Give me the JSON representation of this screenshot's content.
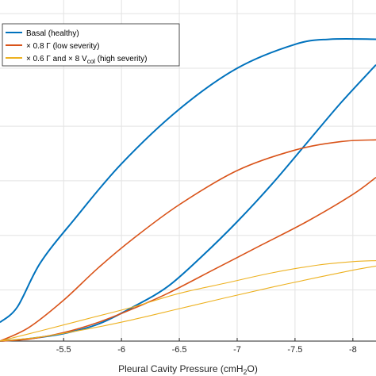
{
  "chart_data": {
    "type": "line",
    "title": "",
    "xlabel": {
      "main": "Pleural Cavity Pressure (cmH",
      "sub": "2",
      "suffix": "O)"
    },
    "ylabel": "",
    "x_axis_reversed": true,
    "xlim": [
      -4.95,
      -8.2
    ],
    "ylim": [
      0,
      1
    ],
    "xticks": [
      -5.5,
      -6,
      -6.5,
      -7,
      -7.5,
      -8
    ],
    "xtick_labels": [
      "-5.5",
      "-6",
      "-6.5",
      "-7",
      "-7.5",
      "-8"
    ],
    "grid": true,
    "legend_position": "top-left",
    "legend": [
      {
        "parts": [
          {
            "t": "Basal (healthy)"
          }
        ],
        "color": "#0072BD"
      },
      {
        "parts": [
          {
            "t": "× 0.8 Γ (low severity)"
          }
        ],
        "color": "#D95319"
      },
      {
        "parts": [
          {
            "t": "× 0.6 Γ and × 8 V"
          },
          {
            "t": "col",
            "sub": true
          },
          {
            "t": " (high severity)"
          }
        ],
        "color": "#EDB120"
      }
    ],
    "series": [
      {
        "color": "#0072BD",
        "upper_x": [
          -4.95,
          -5.1,
          -5.3,
          -5.6,
          -6.0,
          -6.5,
          -7.0,
          -7.5,
          -7.8,
          -8.2
        ],
        "upper_y": [
          0.055,
          0.1,
          0.23,
          0.36,
          0.52,
          0.68,
          0.8,
          0.87,
          0.885,
          0.885
        ],
        "lower_x": [
          -4.95,
          -5.2,
          -5.5,
          -5.8,
          -6.1,
          -6.4,
          -6.7,
          -7.0,
          -7.3,
          -7.6,
          -7.9,
          -8.2
        ],
        "lower_y": [
          0.0,
          0.007,
          0.022,
          0.05,
          0.1,
          0.16,
          0.25,
          0.35,
          0.46,
          0.58,
          0.7,
          0.81
        ]
      },
      {
        "color": "#D95319",
        "upper_x": [
          -4.95,
          -5.2,
          -5.5,
          -5.8,
          -6.1,
          -6.5,
          -7.0,
          -7.5,
          -7.9,
          -8.2
        ],
        "upper_y": [
          0.0,
          0.04,
          0.12,
          0.215,
          0.3,
          0.4,
          0.5,
          0.56,
          0.585,
          0.59
        ],
        "lower_x": [
          -4.95,
          -5.2,
          -5.5,
          -5.8,
          -6.1,
          -6.4,
          -6.8,
          -7.2,
          -7.6,
          -8.0,
          -8.2
        ],
        "lower_y": [
          0.0,
          0.006,
          0.025,
          0.055,
          0.095,
          0.14,
          0.21,
          0.28,
          0.35,
          0.43,
          0.48
        ]
      },
      {
        "color": "#EDB120",
        "upper_x": [
          -4.95,
          -5.3,
          -5.7,
          -6.1,
          -6.5,
          -6.9,
          -7.3,
          -7.7,
          -8.0,
          -8.2
        ],
        "upper_y": [
          0.0,
          0.03,
          0.065,
          0.1,
          0.14,
          0.17,
          0.2,
          0.223,
          0.233,
          0.236
        ],
        "lower_x": [
          -4.95,
          -5.3,
          -5.7,
          -6.1,
          -6.5,
          -6.9,
          -7.3,
          -7.7,
          -8.0,
          -8.2
        ],
        "lower_y": [
          0.0,
          0.012,
          0.035,
          0.063,
          0.095,
          0.127,
          0.158,
          0.187,
          0.208,
          0.22
        ]
      }
    ]
  }
}
